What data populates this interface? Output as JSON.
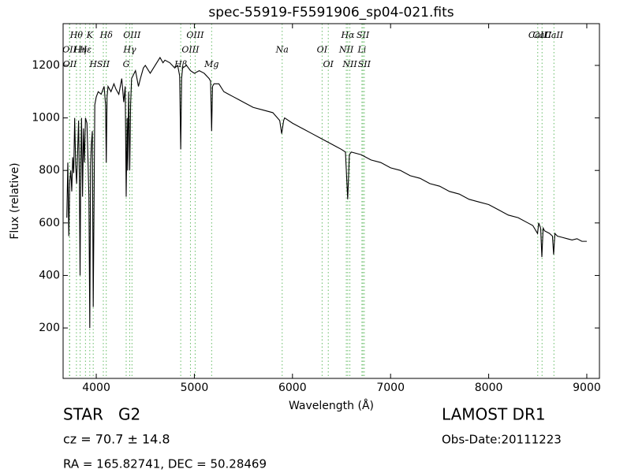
{
  "chart_data": {
    "type": "line",
    "title": "spec-55919-F5591906_sp04-021.fits",
    "x_label": "Wavelength (Å)",
    "y_label": "Flux (relative)",
    "color": "#000000",
    "line_color": "#66bb66",
    "xlim": [
      3662,
      9129
    ],
    "ylim": [
      8,
      1359
    ],
    "xticks": [
      4000,
      5000,
      6000,
      7000,
      8000,
      9000
    ],
    "yticks": [
      200,
      400,
      600,
      800,
      1000,
      1200
    ],
    "x": [
      3700,
      3710,
      3720,
      3730,
      3740,
      3750,
      3760,
      3770,
      3780,
      3790,
      3800,
      3810,
      3820,
      3828,
      3835,
      3842,
      3850,
      3860,
      3870,
      3880,
      3890,
      3905,
      3915,
      3925,
      3934,
      3942,
      3950,
      3960,
      3969,
      3978,
      3985,
      4000,
      4020,
      4050,
      4080,
      4095,
      4102,
      4110,
      4120,
      4150,
      4180,
      4200,
      4230,
      4260,
      4280,
      4295,
      4305,
      4315,
      4320,
      4330,
      4341,
      4350,
      4360,
      4400,
      4430,
      4450,
      4480,
      4500,
      4550,
      4600,
      4650,
      4680,
      4700,
      4750,
      4800,
      4830,
      4850,
      4861,
      4870,
      4880,
      4920,
      4960,
      5000,
      5050,
      5100,
      5150,
      5165,
      5176,
      5185,
      5200,
      5250,
      5300,
      5350,
      5400,
      5450,
      5500,
      5600,
      5700,
      5800,
      5870,
      5890,
      5910,
      5920,
      6000,
      6100,
      6200,
      6300,
      6400,
      6450,
      6500,
      6540,
      6563,
      6580,
      6600,
      6700,
      6800,
      6900,
      7000,
      7100,
      7200,
      7300,
      7400,
      7500,
      7600,
      7700,
      7800,
      7900,
      8000,
      8100,
      8200,
      8300,
      8400,
      8450,
      8498,
      8510,
      8520,
      8530,
      8542,
      8555,
      8570,
      8620,
      8650,
      8662,
      8675,
      8700,
      8750,
      8800,
      8850,
      8900,
      8950,
      9000
    ],
    "values": [
      620,
      830,
      550,
      760,
      800,
      720,
      850,
      790,
      1000,
      820,
      750,
      870,
      990,
      760,
      400,
      820,
      1000,
      700,
      960,
      830,
      1000,
      980,
      850,
      700,
      200,
      820,
      900,
      950,
      280,
      700,
      1050,
      1080,
      1100,
      1090,
      1120,
      1050,
      830,
      1080,
      1120,
      1100,
      1130,
      1110,
      1090,
      1150,
      1060,
      1120,
      700,
      1000,
      800,
      1100,
      800,
      1050,
      1150,
      1180,
      1120,
      1150,
      1190,
      1200,
      1170,
      1200,
      1230,
      1210,
      1220,
      1210,
      1190,
      1200,
      1160,
      880,
      1150,
      1190,
      1200,
      1180,
      1170,
      1180,
      1170,
      1150,
      1140,
      950,
      1120,
      1130,
      1130,
      1100,
      1090,
      1080,
      1070,
      1060,
      1040,
      1030,
      1020,
      990,
      940,
      990,
      1000,
      980,
      960,
      940,
      920,
      900,
      890,
      880,
      870,
      690,
      860,
      870,
      860,
      840,
      830,
      810,
      800,
      780,
      770,
      750,
      740,
      720,
      710,
      690,
      680,
      670,
      650,
      630,
      620,
      600,
      590,
      560,
      600,
      590,
      580,
      470,
      580,
      570,
      560,
      550,
      480,
      560,
      550,
      545,
      540,
      535,
      540,
      530,
      530
    ],
    "lines": [
      {
        "name": "Hθ",
        "wavelength": 3798
      },
      {
        "name": "OII",
        "wavelength": 3727
      },
      {
        "name": "OII",
        "wavelength": 3730
      },
      {
        "name": "K",
        "wavelength": 3934
      },
      {
        "name": "Hη",
        "wavelength": 3836
      },
      {
        "name": "H",
        "wavelength": 3969
      },
      {
        "name": "Hδ",
        "wavelength": 4102
      },
      {
        "name": "Hε",
        "wavelength": 3890
      },
      {
        "name": "SII",
        "wavelength": 4072
      },
      {
        "name": "OIII",
        "wavelength": 4364
      },
      {
        "name": "Hγ",
        "wavelength": 4341
      },
      {
        "name": "G",
        "wavelength": 4305
      },
      {
        "name": "OIII",
        "wavelength": 5008
      },
      {
        "name": "OIII",
        "wavelength": 4960
      },
      {
        "name": "Hβ",
        "wavelength": 4861
      },
      {
        "name": "Hα",
        "wavelength": 6564
      },
      {
        "name": "Na",
        "wavelength": 5895
      },
      {
        "name": "Mg",
        "wavelength": 5176
      },
      {
        "name": "SII",
        "wavelength": 6718
      },
      {
        "name": "OI",
        "wavelength": 6302
      },
      {
        "name": "OI",
        "wavelength": 6365
      },
      {
        "name": "CaII",
        "wavelength": 8544
      },
      {
        "name": "NII",
        "wavelength": 6549
      },
      {
        "name": "NII",
        "wavelength": 6585
      },
      {
        "name": "CaII",
        "wavelength": 8500
      },
      {
        "name": "Li",
        "wavelength": 6708
      },
      {
        "name": "SII",
        "wavelength": 6732
      },
      {
        "name": "CaII",
        "wavelength": 8665
      }
    ]
  },
  "info": {
    "object": "STAR   G2",
    "redshift": "cz = 70.7 ± 14.8",
    "coordinates": "RA = 165.82741, DEC = 50.28469",
    "survey": "LAMOST DR1",
    "date": "Obs-Date:20111223"
  }
}
